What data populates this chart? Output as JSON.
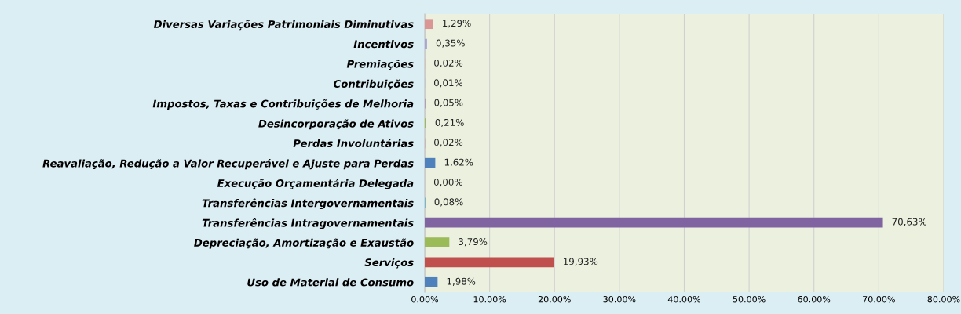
{
  "chart_data": {
    "type": "bar",
    "orientation": "horizontal",
    "categories": [
      "Diversas Variações Patrimoniais Diminutivas",
      "Incentivos",
      "Premiações",
      "Contribuições",
      "Impostos, Taxas e Contribuições de Melhoria",
      "Desincorporação de Ativos",
      "Perdas Involuntárias",
      "Reavaliação, Redução a Valor Recuperável e Ajuste para Perdas",
      "Execução Orçamentária Delegada",
      "Transferências Intergovernamentais",
      "Transferências Intragovernamentais",
      "Depreciação, Amortização e Exaustão",
      "Serviços",
      "Uso de Material de Consumo"
    ],
    "values": [
      1.29,
      0.35,
      0.02,
      0.01,
      0.05,
      0.21,
      0.02,
      1.62,
      0.0,
      0.08,
      70.63,
      3.79,
      19.93,
      1.98
    ],
    "value_labels": [
      "1,29%",
      "0,35%",
      "0,02%",
      "0,01%",
      "0,05%",
      "0,21%",
      "0,02%",
      "1,62%",
      "0,00%",
      "0,08%",
      "70,63%",
      "3,79%",
      "19,93%",
      "1,98%"
    ],
    "colors": [
      "#d99694",
      "#a5a5d6",
      "#f79646",
      "#4bacc6",
      "#8064a2",
      "#9bbb59",
      "#c0504d",
      "#4f81bd",
      "#f79646",
      "#4bacc6",
      "#8064a2",
      "#9bbb59",
      "#c0504d",
      "#4f81bd"
    ],
    "xlim": [
      0,
      80
    ],
    "xticks": [
      {
        "value": 0,
        "label": "0.00%"
      },
      {
        "value": 10,
        "label": "10.00%"
      },
      {
        "value": 20,
        "label": "20.00%"
      },
      {
        "value": 30,
        "label": "30.00%"
      },
      {
        "value": 40,
        "label": "40.00%"
      },
      {
        "value": 50,
        "label": "50.00%"
      },
      {
        "value": 60,
        "label": "60.00%"
      },
      {
        "value": 70,
        "label": "70.00%"
      },
      {
        "value": 80,
        "label": "80.00%"
      }
    ],
    "grid": "x",
    "legend": false
  }
}
